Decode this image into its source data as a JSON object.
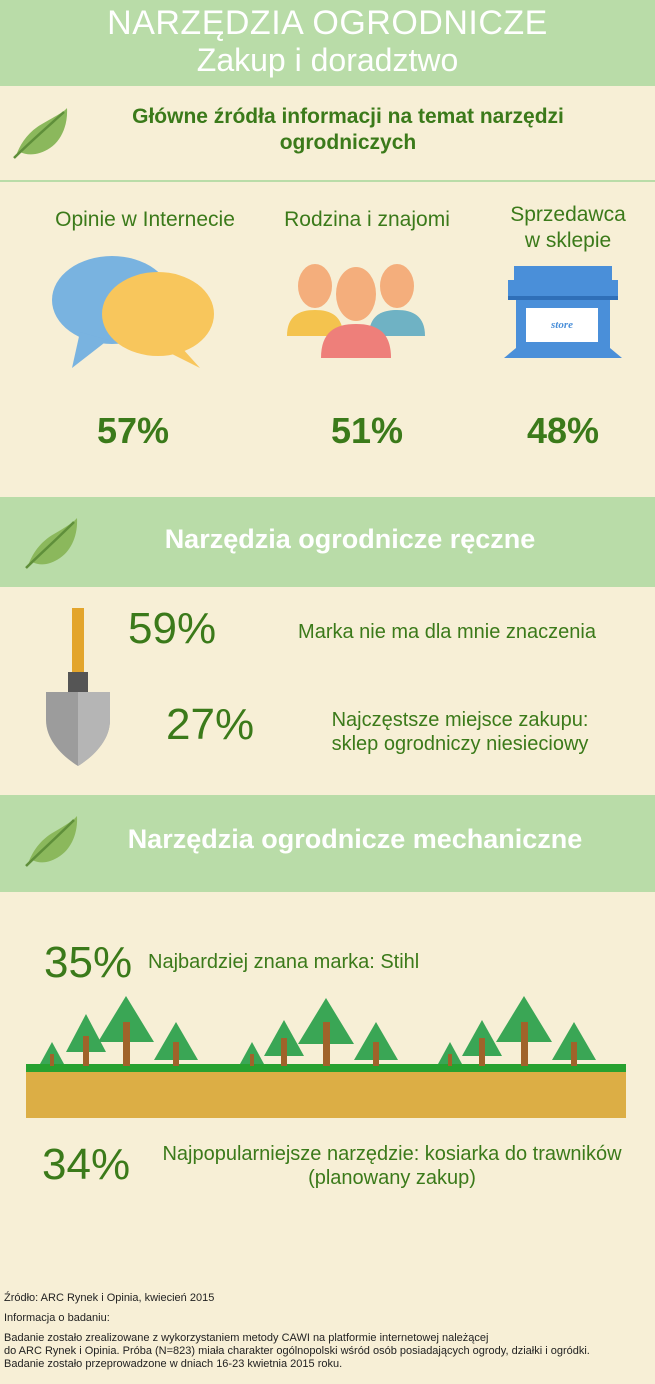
{
  "header": {
    "title": "NARZĘDZIA OGRODNICZE",
    "subtitle": "Zakup i doradztwo"
  },
  "info_sources": {
    "title_line1": "Główne źródła informacji na temat narzędzi",
    "title_line2": "ogrodniczych",
    "items": [
      {
        "label_line1": "Opinie w Internecie",
        "label_line2": "",
        "value": "57%",
        "icon": "speech-bubbles-icon"
      },
      {
        "label_line1": "Rodzina i znajomi",
        "label_line2": "",
        "value": "51%",
        "icon": "people-group-icon"
      },
      {
        "label_line1": "Sprzedawca",
        "label_line2": "w sklepie",
        "value": "48%",
        "icon": "store-icon",
        "store_sign": "store"
      }
    ]
  },
  "hand_tools": {
    "title": "Narzędzia ogrodnicze ręczne",
    "stat1": {
      "value": "59%",
      "text": "Marka nie ma dla mnie znaczenia"
    },
    "stat2": {
      "value": "27%",
      "text_line1": "Najczęstsze miejsce zakupu:",
      "text_line2": "sklep ogrodniczy niesieciowy"
    },
    "icon": "shovel-icon"
  },
  "mechanical_tools": {
    "title": "Narzędzia ogrodnicze mechaniczne",
    "stat1": {
      "value": "35%",
      "text": "Najbardziej znana marka: Stihl"
    },
    "stat2": {
      "value": "34%",
      "text_line1": "Najpopularniejsze narzędzie: kosiarka do trawników",
      "text_line2": "(planowany zakup)"
    }
  },
  "footer": {
    "source": "Źródło: ARC Rynek i Opinia, kwiecień 2015",
    "info_heading": "Informacja o badaniu:",
    "line1": "Badanie zostało zrealizowane z wykorzystaniem metody CAWI na platformie internetowej należącej",
    "line2": "do ARC Rynek i Opinia. Próba (N=823) miała charakter ogólnopolski wśród osób posiadających ogrody, działki i ogródki.",
    "line3": "Badanie zostało przeprowadzone w dniach 16-23 kwietnia 2015 roku."
  },
  "colors": {
    "background": "#f7efd6",
    "band": "#b9dca8",
    "text_green": "#3b7a1a",
    "leaf": "#8bb85c",
    "bubble_blue": "#79b3e0",
    "bubble_yellow": "#f8c65c",
    "store_blue": "#4a8fd9",
    "tree": "#3aa655",
    "trunk": "#a0632a",
    "ground": "#dcae45",
    "grass": "#27a12f"
  }
}
